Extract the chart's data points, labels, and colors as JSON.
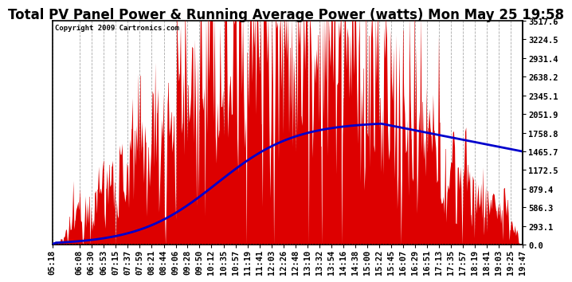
{
  "title": "Total PV Panel Power & Running Average Power (watts) Mon May 25 19:58",
  "copyright": "Copyright 2009 Cartronics.com",
  "background_color": "#ffffff",
  "plot_background": "#ffffff",
  "y_ticks": [
    0.0,
    293.1,
    586.3,
    879.4,
    1172.5,
    1465.7,
    1758.8,
    2051.9,
    2345.1,
    2638.2,
    2931.4,
    3224.5,
    3517.6
  ],
  "y_max": 3517.6,
  "x_labels": [
    "05:18",
    "06:08",
    "06:30",
    "06:53",
    "07:15",
    "07:37",
    "07:59",
    "08:21",
    "08:44",
    "09:06",
    "09:28",
    "09:50",
    "10:12",
    "10:35",
    "10:57",
    "11:19",
    "11:41",
    "12:03",
    "12:26",
    "12:48",
    "13:10",
    "13:32",
    "13:54",
    "14:16",
    "14:38",
    "15:00",
    "15:22",
    "15:45",
    "16:07",
    "16:29",
    "16:51",
    "17:13",
    "17:35",
    "17:57",
    "18:19",
    "18:41",
    "19:03",
    "19:25",
    "19:47"
  ],
  "bar_color": "#dd0000",
  "line_color": "#0000cc",
  "grid_color": "#aaaaaa",
  "title_fontsize": 12,
  "axis_fontsize": 7.5
}
